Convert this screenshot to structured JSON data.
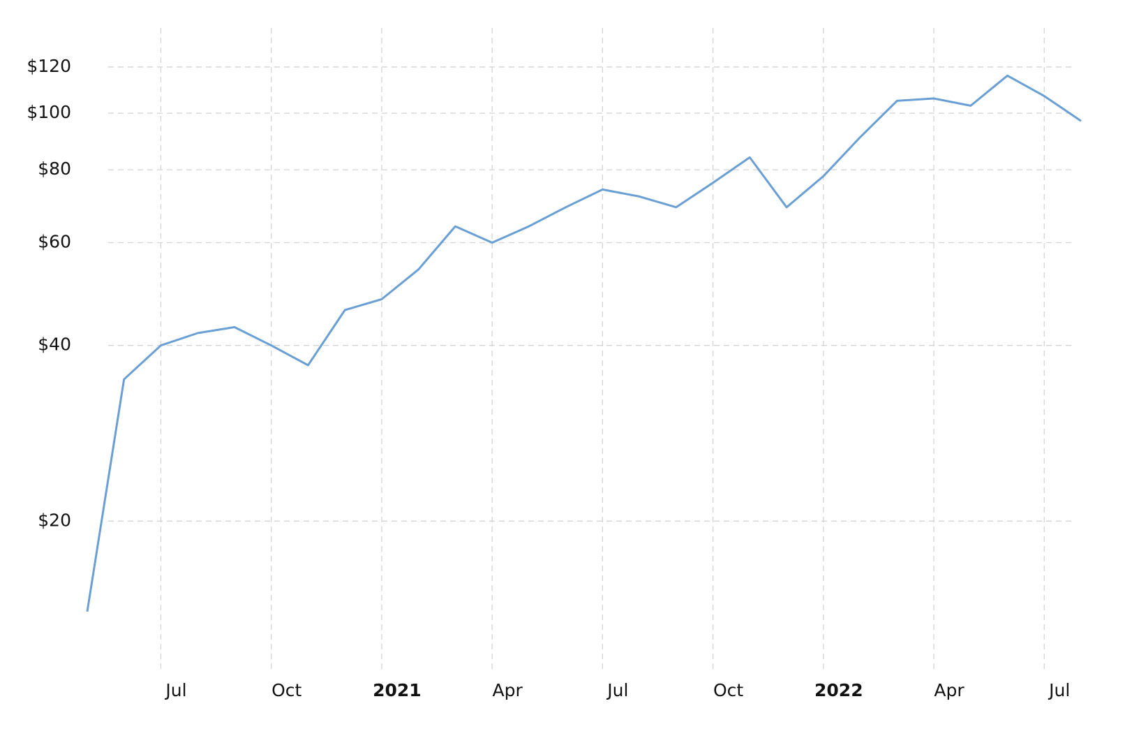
{
  "chart_data": {
    "type": "line",
    "x": [
      "2020-05",
      "2020-06",
      "2020-07",
      "2020-08",
      "2020-09",
      "2020-10",
      "2020-11",
      "2020-12",
      "2021-01",
      "2021-02",
      "2021-03",
      "2021-04",
      "2021-05",
      "2021-06",
      "2021-07",
      "2021-08",
      "2021-09",
      "2021-10",
      "2021-11",
      "2021-12",
      "2022-01",
      "2022-02",
      "2022-03",
      "2022-04",
      "2022-05",
      "2022-06",
      "2022-07",
      "2022-08"
    ],
    "series": [
      {
        "color": "#6a9fd4",
        "values": [
          14,
          35,
          40,
          42,
          43,
          40,
          37,
          46,
          48,
          54,
          64,
          60,
          64,
          69,
          74,
          72,
          69,
          76,
          84,
          69,
          78,
          91,
          105,
          106,
          103,
          116,
          107,
          97
        ]
      }
    ],
    "xlim": [
      "2020-05",
      "2022-08"
    ],
    "xticks": [
      {
        "value": "2020-07",
        "label": "Jul"
      },
      {
        "value": "2020-10",
        "label": "Oct"
      },
      {
        "value": "2021-01",
        "label": "2021"
      },
      {
        "value": "2021-04",
        "label": "Apr"
      },
      {
        "value": "2021-07",
        "label": "Jul"
      },
      {
        "value": "2021-10",
        "label": "Oct"
      },
      {
        "value": "2022-01",
        "label": "2022"
      },
      {
        "value": "2022-04",
        "label": "Apr"
      },
      {
        "value": "2022-07",
        "label": "Jul"
      }
    ],
    "ylim": [
      11.1,
      140
    ],
    "yticks": [
      {
        "value": 20,
        "label": "$20"
      },
      {
        "value": 40,
        "label": "$40"
      },
      {
        "value": 60,
        "label": "$60"
      },
      {
        "value": 80,
        "label": "$80"
      },
      {
        "value": 100,
        "label": "$100"
      },
      {
        "value": 120,
        "label": "$120"
      }
    ],
    "log_scale": true,
    "grid": true
  }
}
